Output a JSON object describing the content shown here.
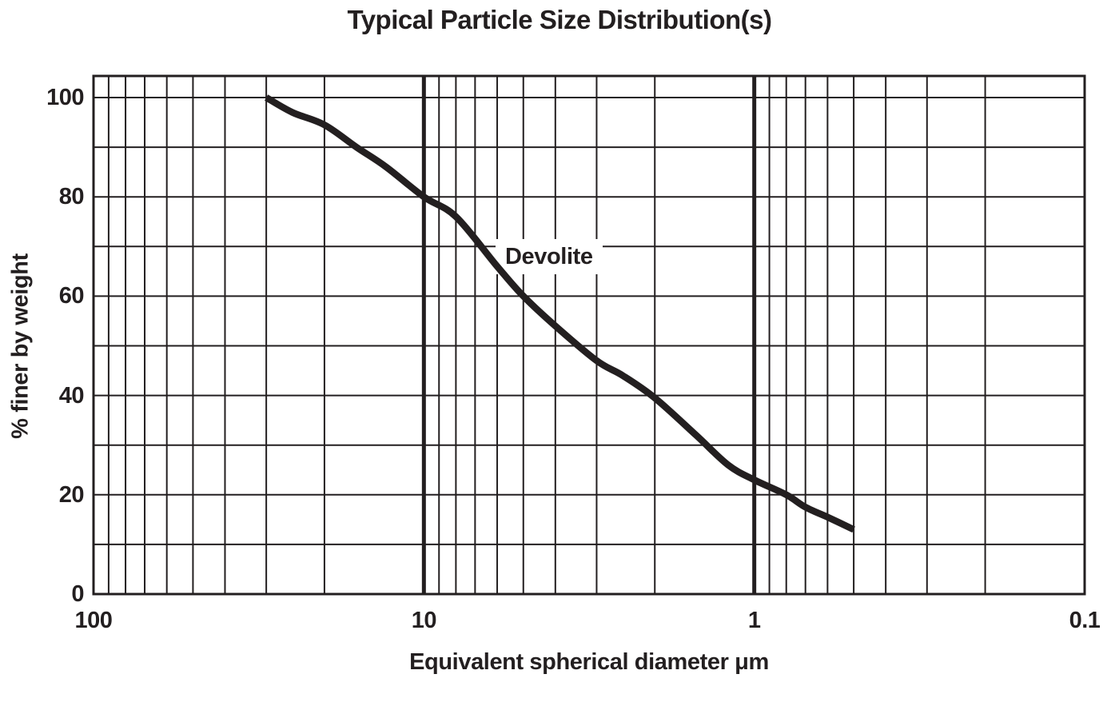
{
  "chart_data": {
    "type": "line",
    "title": "Typical Particle Size Distribution(s)",
    "xlabel": "Equivalent spherical diameter μm",
    "ylabel": "% finer by weight",
    "x_scale": "log",
    "x_reversed": true,
    "x_range": [
      100,
      0.1
    ],
    "y_range": [
      0,
      100
    ],
    "x_ticks": [
      "100",
      "10",
      "1",
      "0.1"
    ],
    "y_ticks": [
      "100",
      "80",
      "60",
      "40",
      "20",
      "0"
    ],
    "y_minor_gridline_step": 10,
    "grid": true,
    "emphasized_x_gridlines": [
      10,
      1
    ],
    "series": [
      {
        "name": "Devolite",
        "color": "#231f20",
        "label_anchor": {
          "x_um": 5.74,
          "y_pct": 68
        },
        "points_um_pct": [
          [
            30,
            100
          ],
          [
            25,
            97
          ],
          [
            20,
            94.5
          ],
          [
            16,
            90
          ],
          [
            13,
            86
          ],
          [
            10,
            80
          ],
          [
            8,
            76
          ],
          [
            6,
            66
          ],
          [
            5,
            60
          ],
          [
            4,
            54
          ],
          [
            3,
            47
          ],
          [
            2.5,
            44
          ],
          [
            2,
            39.5
          ],
          [
            1.5,
            32
          ],
          [
            1.2,
            26
          ],
          [
            1,
            23
          ],
          [
            0.8,
            20
          ],
          [
            0.7,
            17.5
          ],
          [
            0.6,
            15.5
          ],
          [
            0.5,
            13
          ]
        ]
      }
    ],
    "colors": {
      "ink": "#231f20",
      "background": "#ffffff"
    }
  }
}
